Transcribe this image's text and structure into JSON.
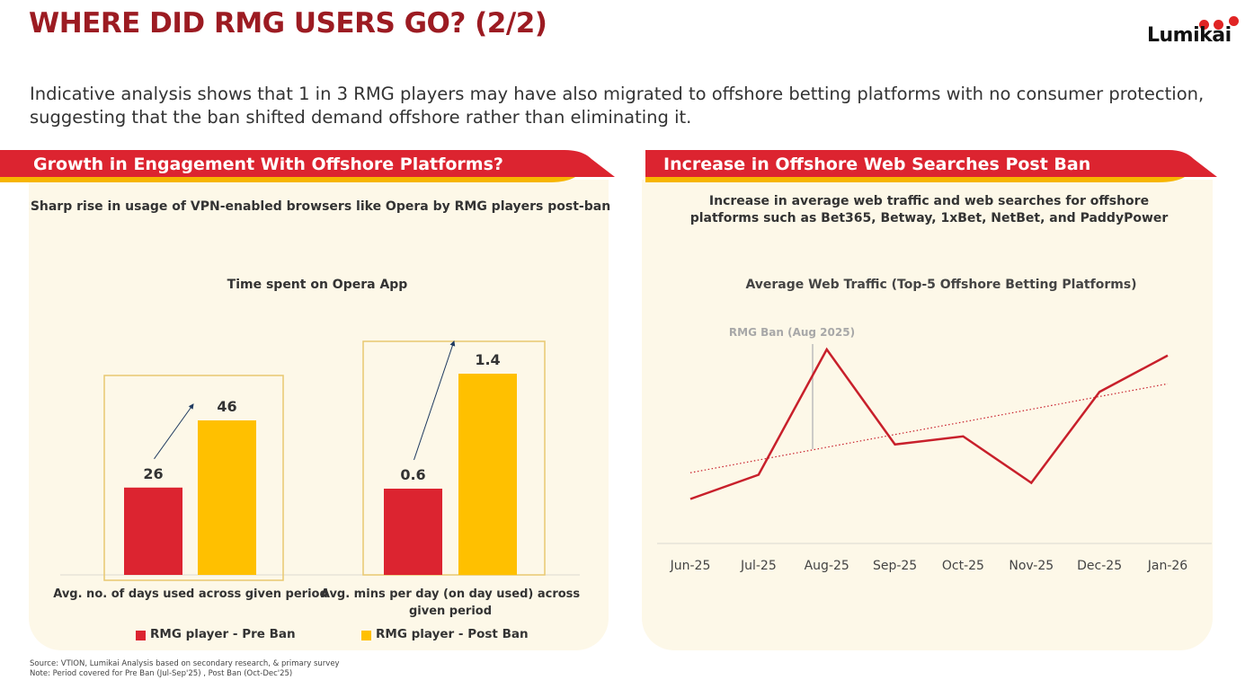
{
  "page": {
    "title": "WHERE DID RMG USERS GO? (2/2)",
    "logo_text": "Lumikai",
    "subtitle": "Indicative analysis shows that 1 in 3 RMG players may have also migrated to offshore betting platforms with no consumer protection, suggesting that the ban shifted demand offshore rather than eliminating it.",
    "footnote_source": "Source: VTION, Lumikai Analysis based on secondary research, & primary survey",
    "footnote_note": "Note: Period covered for Pre Ban (Jul-Sep'25) , Post Ban (Oct-Dec'25)"
  },
  "colors": {
    "title": "#9c1b22",
    "header_red": "#dc2430",
    "header_underline": "#f7b500",
    "panel_bg": "#fdf8e8",
    "pre_ban": "#dc2430",
    "post_ban": "#ffc000",
    "line": "#c8202b",
    "highlight_box": "#e8c870"
  },
  "left_panel": {
    "header": "Growth in Engagement With Offshore Platforms?",
    "caption": "Sharp rise in usage of VPN-enabled browsers like Opera by RMG players post-ban"
  },
  "right_panel": {
    "header": "Increase in Offshore Web Searches Post Ban",
    "caption_line1": "Increase in average web traffic and web searches for offshore",
    "caption_line2": "platforms such as Bet365, Betway, 1xBet, NetBet, and PaddyPower"
  },
  "chart_data": [
    {
      "type": "bar",
      "title": "Time spent on Opera App",
      "categories": [
        "Avg. no. of days used across given period",
        "Avg. mins per day (on day used) across given period"
      ],
      "series": [
        {
          "name": "RMG player - Pre Ban",
          "values": [
            26,
            0.6
          ],
          "labels": [
            "26",
            "0.6"
          ]
        },
        {
          "name": "RMG player - Post Ban",
          "values": [
            46,
            1.4
          ],
          "labels": [
            "46",
            "1.4"
          ]
        }
      ],
      "note": "Each category group uses its own independent scale",
      "legend_position": "bottom",
      "grid": false
    },
    {
      "type": "line",
      "title": "Average Web Traffic (Top-5 Offshore Betting Platforms)",
      "x": [
        "Jun-25",
        "Jul-25",
        "Aug-25",
        "Sep-25",
        "Oct-25",
        "Nov-25",
        "Dec-25",
        "Jan-26"
      ],
      "series": [
        {
          "name": "Average Web Traffic (relative index, unlabeled axis)",
          "values": [
            22,
            34,
            96,
            49,
            53,
            30,
            75,
            93
          ]
        },
        {
          "name": "Trend (linear)",
          "style": "dotted",
          "values": [
            35,
            41.3,
            47.6,
            53.9,
            60.1,
            66.4,
            72.7,
            79
          ]
        }
      ],
      "annotations": [
        {
          "label": "RMG Ban (Aug 2025)",
          "x_position": "between Jul-25 and Aug-25"
        }
      ],
      "ylim": [
        0,
        100
      ],
      "y_axis_visible": false,
      "grid": false
    }
  ]
}
